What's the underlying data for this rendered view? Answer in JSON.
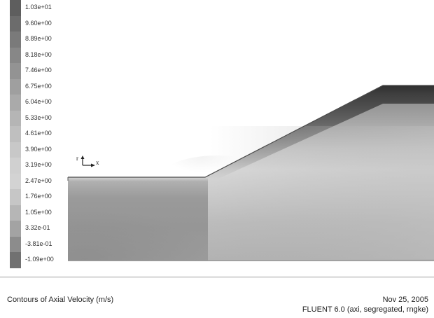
{
  "colorbar": {
    "labels": [
      "1.03e+01",
      "9.60e+00",
      "8.89e+00",
      "8.18e+00",
      "7.46e+00",
      "6.75e+00",
      "6.04e+00",
      "5.33e+00",
      "4.61e+00",
      "3.90e+00",
      "3.19e+00",
      "2.47e+00",
      "1.76e+00",
      "1.05e+00",
      "3.32e-01",
      "-3.81e-01",
      "-1.09e+00"
    ],
    "grays": [
      "#5e5e5e",
      "#6c6c6c",
      "#7a7a7a",
      "#878787",
      "#939393",
      "#9f9f9f",
      "#aaaaaa",
      "#b5b5b5",
      "#bfbfbf",
      "#c8c8c8",
      "#d0d0d0",
      "#d3d3d3",
      "#c6c6c6",
      "#b6b6b6",
      "#a3a3a3",
      "#8c8c8c",
      "#717171"
    ]
  },
  "axes": {
    "r_label": "r",
    "x_label": "x"
  },
  "footer": {
    "title": "Contours of Axial Velocity (m/s)",
    "date": "Nov 25, 2005",
    "solver": "FLUENT 6.0 (axi, segregated, rngke)"
  }
}
